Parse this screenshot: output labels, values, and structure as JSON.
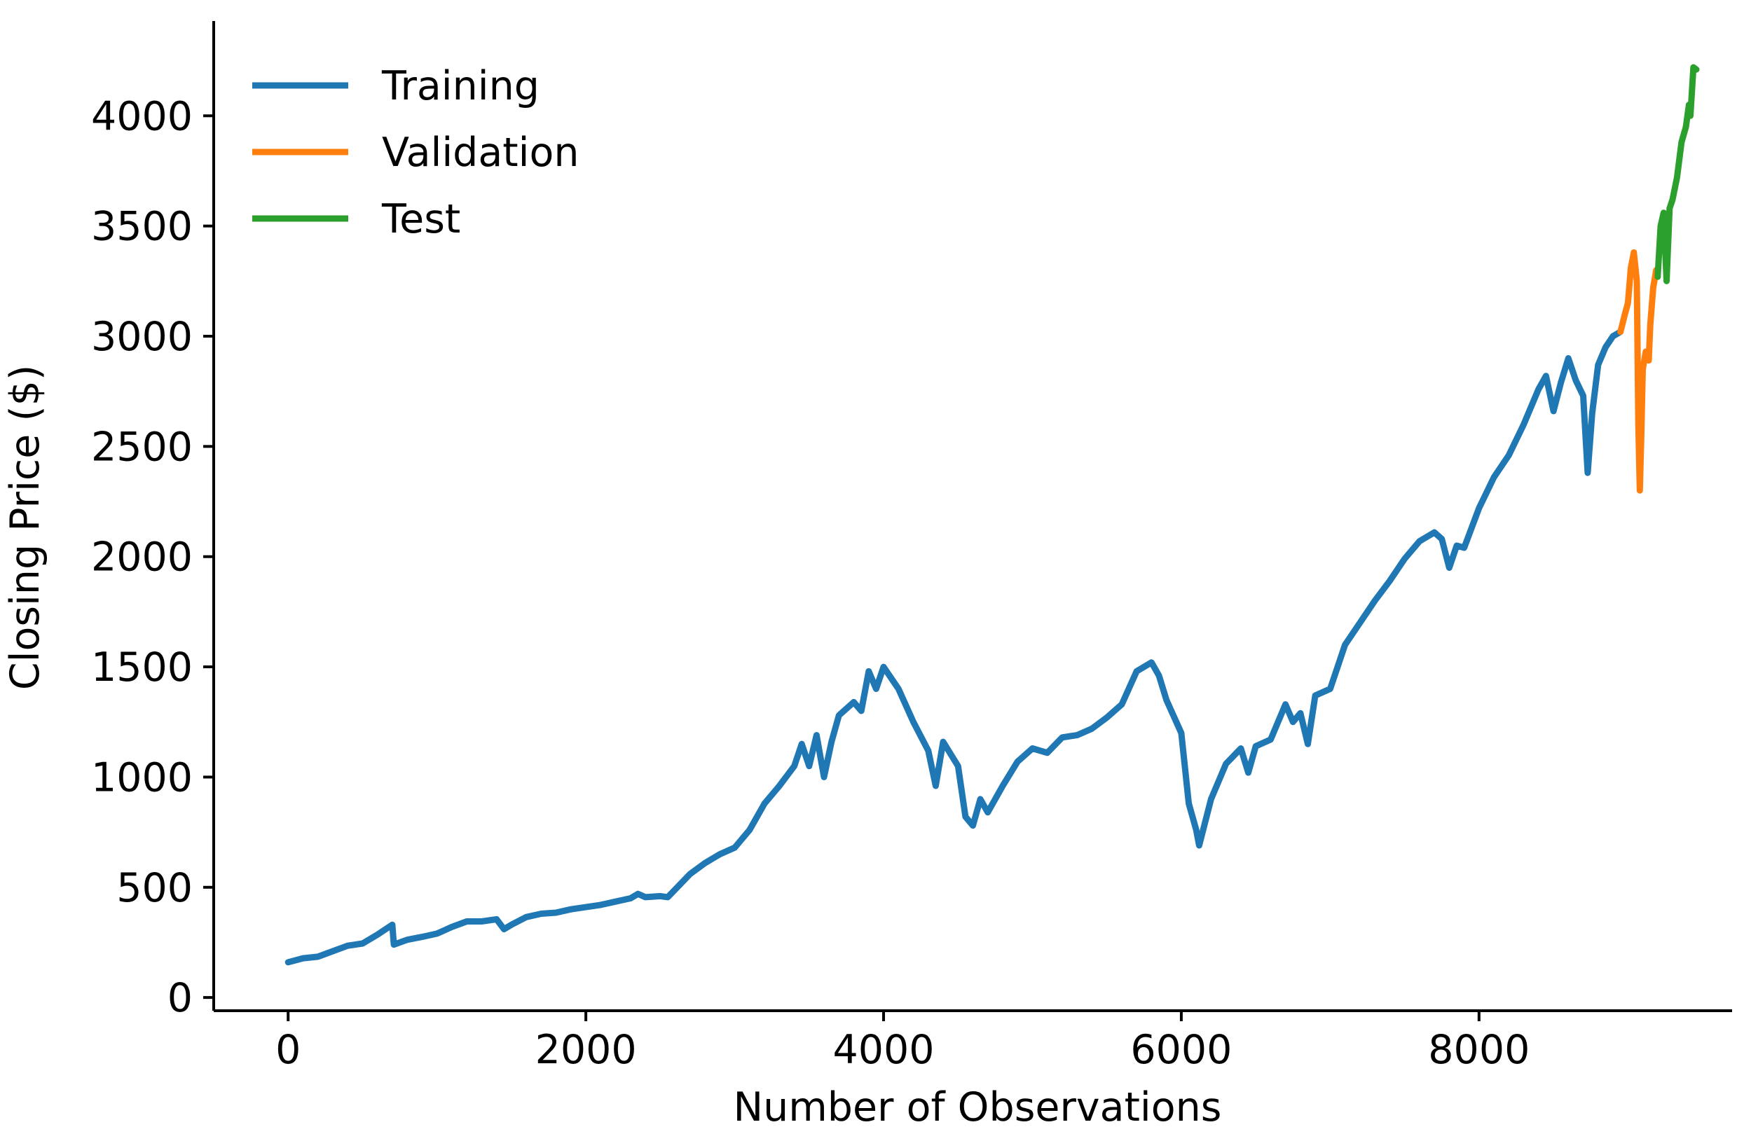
{
  "chart_data": {
    "type": "line",
    "title": "",
    "xlabel": "Number of Observations",
    "ylabel": "Closing Price ($)",
    "xlim": [
      -500,
      9700
    ],
    "ylim": [
      -60,
      4430
    ],
    "xticks": [
      0,
      2000,
      4000,
      6000,
      8000
    ],
    "yticks": [
      0,
      500,
      1000,
      1500,
      2000,
      2500,
      3000,
      3500,
      4000
    ],
    "grid": false,
    "legend": "top-left",
    "series": [
      {
        "name": "Training",
        "color": "#1f77b4",
        "points": [
          [
            0,
            160
          ],
          [
            100,
            178
          ],
          [
            200,
            185
          ],
          [
            300,
            210
          ],
          [
            400,
            235
          ],
          [
            500,
            245
          ],
          [
            600,
            285
          ],
          [
            700,
            330
          ],
          [
            710,
            240
          ],
          [
            800,
            262
          ],
          [
            900,
            275
          ],
          [
            1000,
            290
          ],
          [
            1100,
            320
          ],
          [
            1200,
            345
          ],
          [
            1300,
            345
          ],
          [
            1400,
            355
          ],
          [
            1450,
            310
          ],
          [
            1500,
            330
          ],
          [
            1600,
            365
          ],
          [
            1700,
            380
          ],
          [
            1800,
            385
          ],
          [
            1900,
            400
          ],
          [
            2000,
            410
          ],
          [
            2100,
            420
          ],
          [
            2200,
            435
          ],
          [
            2300,
            450
          ],
          [
            2350,
            470
          ],
          [
            2400,
            455
          ],
          [
            2500,
            460
          ],
          [
            2550,
            455
          ],
          [
            2600,
            490
          ],
          [
            2700,
            560
          ],
          [
            2800,
            610
          ],
          [
            2900,
            650
          ],
          [
            3000,
            680
          ],
          [
            3100,
            760
          ],
          [
            3200,
            880
          ],
          [
            3300,
            960
          ],
          [
            3400,
            1050
          ],
          [
            3450,
            1150
          ],
          [
            3500,
            1050
          ],
          [
            3550,
            1190
          ],
          [
            3600,
            1000
          ],
          [
            3650,
            1160
          ],
          [
            3700,
            1280
          ],
          [
            3800,
            1340
          ],
          [
            3850,
            1300
          ],
          [
            3900,
            1480
          ],
          [
            3950,
            1400
          ],
          [
            4000,
            1500
          ],
          [
            4100,
            1400
          ],
          [
            4200,
            1250
          ],
          [
            4300,
            1120
          ],
          [
            4350,
            960
          ],
          [
            4400,
            1160
          ],
          [
            4500,
            1050
          ],
          [
            4550,
            820
          ],
          [
            4600,
            780
          ],
          [
            4650,
            900
          ],
          [
            4700,
            840
          ],
          [
            4800,
            960
          ],
          [
            4900,
            1070
          ],
          [
            5000,
            1130
          ],
          [
            5100,
            1110
          ],
          [
            5200,
            1180
          ],
          [
            5300,
            1190
          ],
          [
            5400,
            1220
          ],
          [
            5500,
            1270
          ],
          [
            5600,
            1330
          ],
          [
            5700,
            1480
          ],
          [
            5800,
            1520
          ],
          [
            5850,
            1460
          ],
          [
            5900,
            1350
          ],
          [
            6000,
            1200
          ],
          [
            6050,
            880
          ],
          [
            6100,
            760
          ],
          [
            6120,
            690
          ],
          [
            6200,
            900
          ],
          [
            6300,
            1060
          ],
          [
            6400,
            1130
          ],
          [
            6450,
            1020
          ],
          [
            6500,
            1140
          ],
          [
            6600,
            1170
          ],
          [
            6700,
            1330
          ],
          [
            6750,
            1250
          ],
          [
            6800,
            1290
          ],
          [
            6850,
            1150
          ],
          [
            6900,
            1370
          ],
          [
            7000,
            1400
          ],
          [
            7100,
            1600
          ],
          [
            7200,
            1700
          ],
          [
            7300,
            1800
          ],
          [
            7400,
            1890
          ],
          [
            7500,
            1990
          ],
          [
            7600,
            2070
          ],
          [
            7700,
            2110
          ],
          [
            7750,
            2080
          ],
          [
            7800,
            1950
          ],
          [
            7850,
            2050
          ],
          [
            7900,
            2040
          ],
          [
            8000,
            2220
          ],
          [
            8100,
            2360
          ],
          [
            8200,
            2460
          ],
          [
            8300,
            2600
          ],
          [
            8400,
            2760
          ],
          [
            8450,
            2820
          ],
          [
            8500,
            2660
          ],
          [
            8550,
            2790
          ],
          [
            8600,
            2900
          ],
          [
            8650,
            2800
          ],
          [
            8700,
            2730
          ],
          [
            8730,
            2380
          ],
          [
            8760,
            2650
          ],
          [
            8800,
            2870
          ],
          [
            8850,
            2950
          ],
          [
            8900,
            3000
          ],
          [
            8950,
            3020
          ]
        ]
      },
      {
        "name": "Validation",
        "color": "#ff7f0e",
        "points": [
          [
            8950,
            3020
          ],
          [
            8980,
            3100
          ],
          [
            9000,
            3150
          ],
          [
            9020,
            3310
          ],
          [
            9040,
            3380
          ],
          [
            9060,
            3250
          ],
          [
            9070,
            2600
          ],
          [
            9080,
            2300
          ],
          [
            9090,
            2550
          ],
          [
            9100,
            2850
          ],
          [
            9120,
            2930
          ],
          [
            9140,
            2890
          ],
          [
            9150,
            3050
          ],
          [
            9170,
            3220
          ],
          [
            9190,
            3300
          ],
          [
            9200,
            3270
          ]
        ]
      },
      {
        "name": "Test",
        "color": "#2ca02c",
        "points": [
          [
            9200,
            3270
          ],
          [
            9220,
            3500
          ],
          [
            9240,
            3560
          ],
          [
            9260,
            3250
          ],
          [
            9280,
            3580
          ],
          [
            9300,
            3620
          ],
          [
            9330,
            3720
          ],
          [
            9360,
            3880
          ],
          [
            9390,
            3950
          ],
          [
            9410,
            4050
          ],
          [
            9420,
            4000
          ],
          [
            9440,
            4220
          ],
          [
            9460,
            4210
          ]
        ]
      }
    ]
  }
}
